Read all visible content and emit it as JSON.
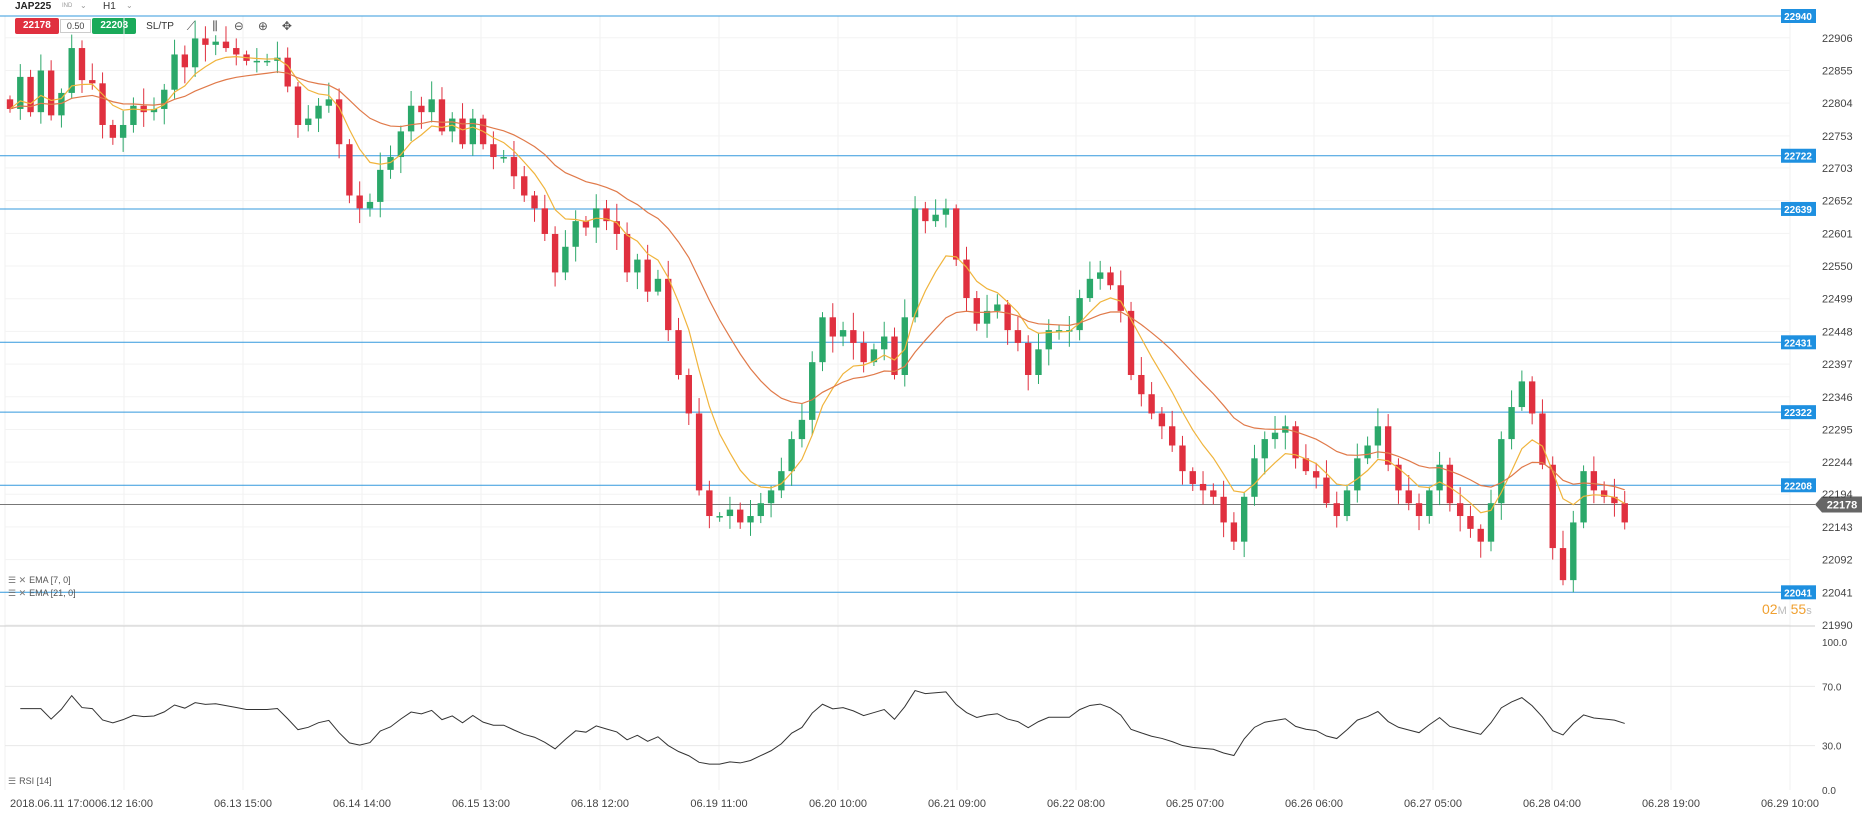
{
  "toolbar": {
    "symbol": "JAP225",
    "instrument_tag": "IND",
    "timeframe": "H1",
    "sell_price": "22178",
    "spread": "0.50",
    "buy_price": "22203",
    "sltp_label": "SL/TP",
    "icons": [
      "chart-type-icon",
      "indicators-icon",
      "zoom-out-icon",
      "zoom-in-icon",
      "crosshair-icon"
    ]
  },
  "indicators": {
    "ema_fast_label": "EMA [7, 0]",
    "ema_slow_label": "EMA [21, 0]",
    "rsi_label": "RSI [14]"
  },
  "countdown": {
    "minutes": "02",
    "m": "M",
    "seconds": "55",
    "s": "s"
  },
  "colors": {
    "up": "#2ba86a",
    "down": "#e0303f",
    "level_line": "#3399dd",
    "level_tag": "#1e90e0",
    "ema_fast": "#f0b43c",
    "ema_slow": "#e07a4a",
    "rsi": "#333333",
    "current_tag": "#666666"
  },
  "chart_data": {
    "type": "candlestick",
    "symbol": "JAP225",
    "timeframe": "H1",
    "price_axis": {
      "ticks": [
        "22906",
        "22855",
        "22804",
        "22753",
        "22703",
        "22652",
        "22601",
        "22550",
        "22499",
        "22448",
        "22397",
        "22346",
        "22295",
        "22244",
        "22194",
        "22143",
        "22092",
        "22041",
        "21990"
      ],
      "range": [
        21990,
        22940
      ]
    },
    "time_axis": [
      "2018.06.11 17:00",
      "06.12 16:00",
      "06.13 15:00",
      "06.14 14:00",
      "06.15 13:00",
      "06.18 12:00",
      "06.19 11:00",
      "06.20 10:00",
      "06.21 09:00",
      "06.22 08:00",
      "06.25 07:00",
      "06.26 06:00",
      "06.27 05:00",
      "06.28 04:00",
      "06.28 19:00",
      "06.29 10:00"
    ],
    "horizontal_levels": [
      "22940",
      "22722",
      "22639",
      "22431",
      "22322",
      "22208",
      "22041"
    ],
    "current_price": "22178",
    "rsi_axis": {
      "ticks": [
        "100.0",
        "70.0",
        "30.0",
        "0.0"
      ],
      "range": [
        0,
        100
      ]
    },
    "candles_close": [
      22795,
      22845,
      22790,
      22855,
      22785,
      22820,
      22890,
      22840,
      22835,
      22770,
      22750,
      22770,
      22800,
      22790,
      22795,
      22825,
      22880,
      22860,
      22905,
      22895,
      22900,
      22890,
      22880,
      22870,
      22870,
      22870,
      22875,
      22830,
      22770,
      22780,
      22800,
      22810,
      22740,
      22660,
      22640,
      22650,
      22700,
      22720,
      22760,
      22800,
      22790,
      22810,
      22760,
      22780,
      22740,
      22780,
      22740,
      22720,
      22720,
      22690,
      22660,
      22640,
      22600,
      22540,
      22580,
      22620,
      22610,
      22640,
      22620,
      22600,
      22540,
      22560,
      22510,
      22530,
      22450,
      22380,
      22320,
      22200,
      22160,
      22160,
      22170,
      22150,
      22160,
      22180,
      22200,
      22230,
      22280,
      22310,
      22400,
      22470,
      22440,
      22450,
      22430,
      22400,
      22420,
      22440,
      22380,
      22470,
      22640,
      22620,
      22630,
      22640,
      22560,
      22500,
      22460,
      22480,
      22490,
      22450,
      22430,
      22380,
      22420,
      22450,
      22450,
      22450,
      22500,
      22530,
      22540,
      22520,
      22480,
      22380,
      22350,
      22320,
      22300,
      22270,
      22230,
      22210,
      22200,
      22190,
      22150,
      22120,
      22190,
      22250,
      22280,
      22290,
      22300,
      22250,
      22230,
      22220,
      22180,
      22160,
      22200,
      22250,
      22270,
      22300,
      22240,
      22200,
      22180,
      22160,
      22200,
      22240,
      22180,
      22160,
      22140,
      22120,
      22180,
      22280,
      22330,
      22370,
      22320,
      22240,
      22110,
      22060,
      22150,
      22230,
      22200,
      22190,
      22180,
      22150
    ]
  }
}
